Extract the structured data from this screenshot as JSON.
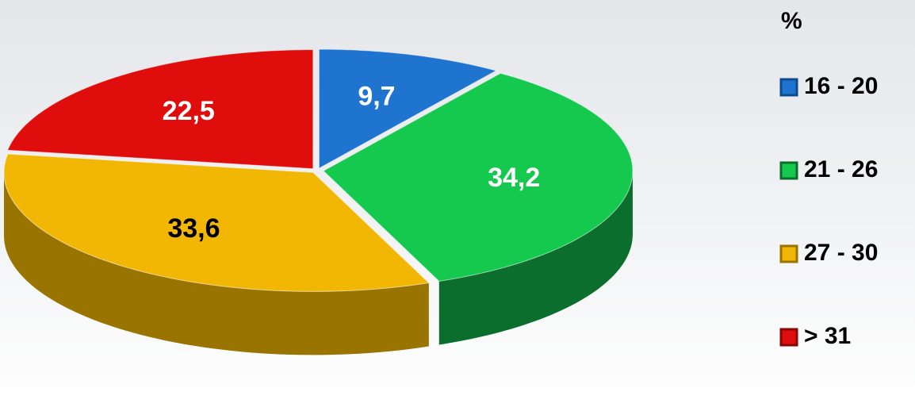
{
  "chart_data": {
    "type": "pie",
    "legend_title": "%",
    "categories": [
      "16 - 20",
      "21 - 26",
      "27 - 30",
      "> 31"
    ],
    "values": [
      9.7,
      34.2,
      33.6,
      22.5
    ],
    "value_labels": [
      "9,7",
      "34,2",
      "33,6",
      "22,5"
    ],
    "colors": [
      "#1f74d0",
      "#14c94e",
      "#f2b705",
      "#e00d0d"
    ],
    "side_colors": [
      "#0d4b90",
      "#0b6e2c",
      "#9a7400",
      "#8a0606"
    ],
    "label_colors": [
      "#ffffff",
      "#ffffff",
      "#000000",
      "#ffffff"
    ],
    "legend": "right"
  }
}
